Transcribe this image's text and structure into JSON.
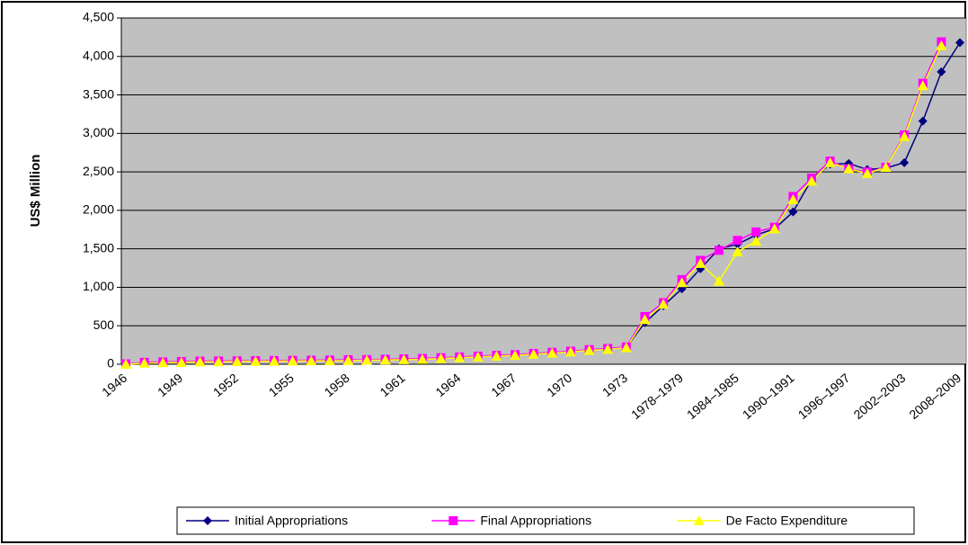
{
  "chart_data": {
    "type": "line",
    "y_label": "US$ Million",
    "categories": [
      "1946",
      null,
      null,
      "1949",
      null,
      null,
      "1952",
      null,
      null,
      "1955",
      null,
      null,
      "1958",
      null,
      null,
      "1961",
      null,
      null,
      "1964",
      null,
      null,
      "1967",
      null,
      null,
      "1970",
      null,
      null,
      "1973",
      null,
      null,
      "1978–1979",
      null,
      null,
      "1984–1985",
      null,
      null,
      "1990–1991",
      null,
      null,
      "1996–1997",
      null,
      null,
      "2002–2003",
      null,
      null,
      "2008–2009"
    ],
    "series": [
      {
        "name": "Initial Appropriations",
        "color": "#000080",
        "marker": "diamond",
        "values": [
          5,
          20,
          25,
          30,
          35,
          38,
          40,
          42,
          44,
          46,
          48,
          50,
          52,
          55,
          60,
          65,
          70,
          80,
          90,
          100,
          110,
          120,
          135,
          150,
          165,
          185,
          200,
          220,
          540,
          760,
          980,
          1240,
          1500,
          1560,
          1680,
          1760,
          1980,
          2400,
          2600,
          2610,
          2530,
          2550,
          2620,
          3160,
          3800,
          4180
        ]
      },
      {
        "name": "Final Appropriations",
        "color": "#ff00ff",
        "marker": "square",
        "values": [
          5,
          25,
          30,
          35,
          40,
          42,
          44,
          46,
          48,
          50,
          52,
          55,
          58,
          60,
          65,
          70,
          75,
          85,
          95,
          105,
          115,
          125,
          140,
          155,
          170,
          190,
          205,
          225,
          620,
          800,
          1100,
          1350,
          1480,
          1610,
          1720,
          1780,
          2180,
          2420,
          2640,
          2540,
          2500,
          2560,
          2980,
          3650,
          4190,
          null
        ]
      },
      {
        "name": "De Facto Expenditure",
        "color": "#ffff00",
        "marker": "triangle",
        "values": [
          0,
          15,
          20,
          25,
          30,
          32,
          35,
          38,
          40,
          42,
          44,
          46,
          48,
          52,
          56,
          60,
          65,
          75,
          85,
          95,
          105,
          115,
          130,
          145,
          160,
          180,
          195,
          215,
          580,
          780,
          1060,
          1310,
          1080,
          1460,
          1600,
          1760,
          2140,
          2380,
          2620,
          2540,
          2480,
          2560,
          2960,
          3620,
          4140,
          null
        ]
      }
    ],
    "ylim": [
      0,
      4500
    ],
    "yticks": [
      0,
      500,
      {
        "value": 1000,
        "label": "1,000"
      },
      {
        "value": 1500,
        "label": "1,500"
      },
      {
        "value": 2000,
        "label": "2,000"
      },
      {
        "value": 2500,
        "label": "2,500"
      },
      {
        "value": 3000,
        "label": "3,000"
      },
      {
        "value": 3500,
        "label": "3,500"
      },
      {
        "value": 4000,
        "label": "4,000"
      },
      {
        "value": 4500,
        "label": "4,500"
      }
    ],
    "grid": true,
    "legend": "bottom",
    "plot_background": "#c0c0c0"
  }
}
